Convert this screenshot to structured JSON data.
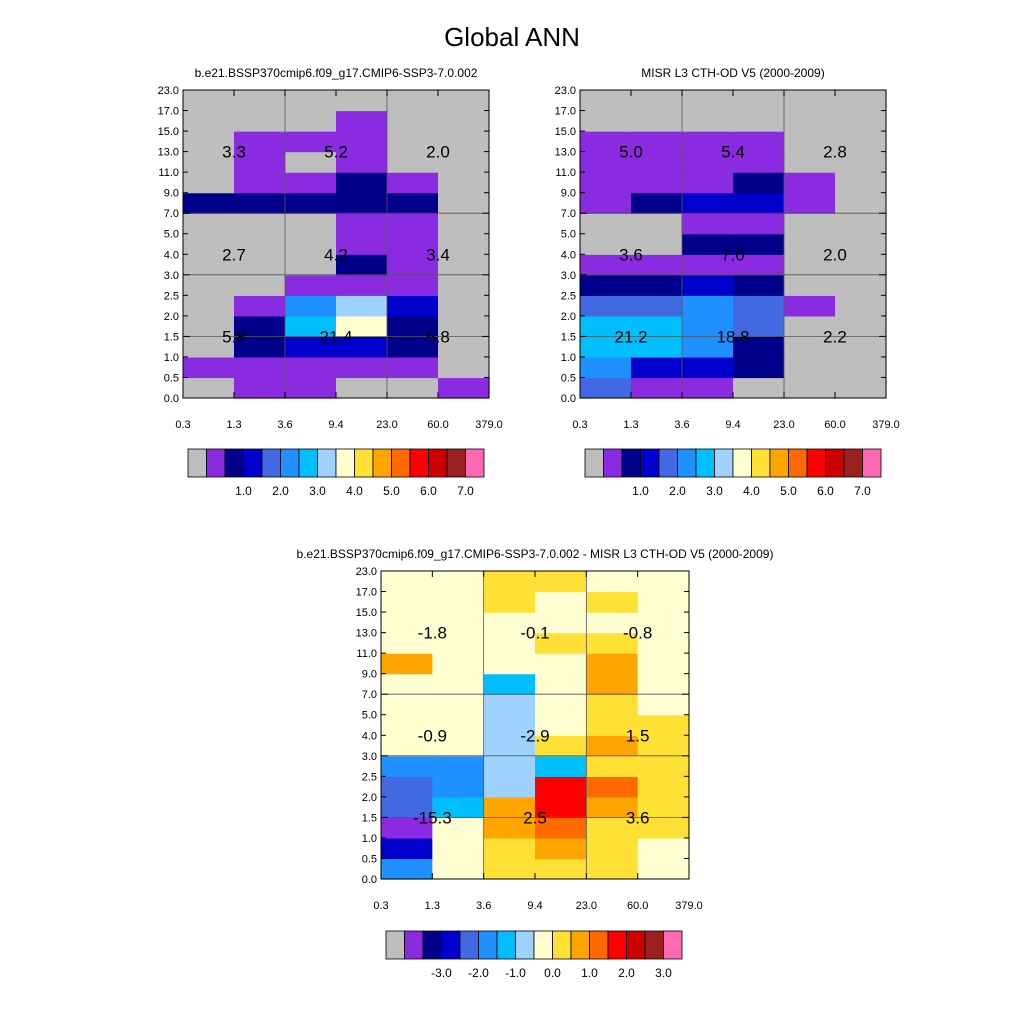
{
  "title": "Global ANN",
  "chart_data": [
    {
      "type": "heatmap",
      "title": "b.e21.BSSP370cmip6.f09_g17.CMIP6-SSP3-7.0.002",
      "x_ticks": [
        "0.3",
        "1.3",
        "3.6",
        "9.4",
        "23.0",
        "60.0",
        "379.0"
      ],
      "y_ticks": [
        "0.0",
        "0.5",
        "1.0",
        "1.5",
        "2.0",
        "2.5",
        "3.0",
        "4.0",
        "5.0",
        "7.0",
        "9.0",
        "11.0",
        "13.0",
        "15.0",
        "17.0",
        "23.0"
      ],
      "grid_lines": true,
      "colorbar_labels": [
        "1.0",
        "2.0",
        "3.0",
        "4.0",
        "5.0",
        "6.0",
        "7.0"
      ],
      "box_labels": [
        {
          "x": "1.3",
          "y": "13.0",
          "value": "3.3"
        },
        {
          "x": "9.4",
          "y": "13.0",
          "value": "5.2"
        },
        {
          "x": "60.0",
          "y": "13.0",
          "value": "2.0"
        },
        {
          "x": "1.3",
          "y": "4.0",
          "value": "2.7"
        },
        {
          "x": "9.4",
          "y": "4.0",
          "value": "4.2"
        },
        {
          "x": "60.0",
          "y": "4.0",
          "value": "3.4"
        },
        {
          "x": "1.3",
          "y": "1.5",
          "value": "5.8"
        },
        {
          "x": "9.4",
          "y": "1.5",
          "value": "21.4"
        },
        {
          "x": "60.0",
          "y": "1.5",
          "value": "5.8"
        }
      ],
      "cells": [
        [
          0,
          1,
          1,
          0,
          0,
          1
        ],
        [
          1,
          1,
          1,
          1,
          1,
          0
        ],
        [
          0,
          2,
          3,
          3,
          2,
          0
        ],
        [
          0,
          2,
          6,
          8,
          2,
          0
        ],
        [
          0,
          1,
          5,
          7,
          3,
          0
        ],
        [
          0,
          0,
          1,
          1,
          1,
          0
        ],
        [
          0,
          0,
          0,
          2,
          1,
          0
        ],
        [
          0,
          0,
          0,
          1,
          1,
          0
        ],
        [
          0,
          0,
          0,
          1,
          1,
          0
        ],
        [
          2,
          2,
          2,
          2,
          2,
          0
        ],
        [
          0,
          1,
          1,
          2,
          1,
          0
        ],
        [
          0,
          1,
          0,
          1,
          0,
          0
        ],
        [
          0,
          1,
          1,
          1,
          0,
          0
        ],
        [
          0,
          0,
          0,
          1,
          0,
          0
        ],
        [
          0,
          0,
          0,
          0,
          0,
          0
        ]
      ]
    },
    {
      "type": "heatmap",
      "title": "MISR L3 CTH-OD V5 (2000-2009)",
      "x_ticks": [
        "0.3",
        "1.3",
        "3.6",
        "9.4",
        "23.0",
        "60.0",
        "379.0"
      ],
      "y_ticks": [
        "0.0",
        "0.5",
        "1.0",
        "1.5",
        "2.0",
        "2.5",
        "3.0",
        "4.0",
        "5.0",
        "7.0",
        "9.0",
        "11.0",
        "13.0",
        "15.0",
        "17.0",
        "23.0"
      ],
      "grid_lines": true,
      "colorbar_labels": [
        "1.0",
        "2.0",
        "3.0",
        "4.0",
        "5.0",
        "6.0",
        "7.0"
      ],
      "box_labels": [
        {
          "x": "1.3",
          "y": "13.0",
          "value": "5.0"
        },
        {
          "x": "9.4",
          "y": "13.0",
          "value": "5.4"
        },
        {
          "x": "60.0",
          "y": "13.0",
          "value": "2.8"
        },
        {
          "x": "1.3",
          "y": "4.0",
          "value": "3.6"
        },
        {
          "x": "9.4",
          "y": "4.0",
          "value": "7.0"
        },
        {
          "x": "60.0",
          "y": "4.0",
          "value": "2.0"
        },
        {
          "x": "1.3",
          "y": "1.5",
          "value": "21.2"
        },
        {
          "x": "9.4",
          "y": "1.5",
          "value": "18.8"
        },
        {
          "x": "60.0",
          "y": "1.5",
          "value": "2.2"
        }
      ],
      "cells": [
        [
          4,
          1,
          1,
          0,
          0,
          0
        ],
        [
          5,
          3,
          3,
          2,
          0,
          0
        ],
        [
          6,
          6,
          5,
          2,
          0,
          0
        ],
        [
          6,
          6,
          5,
          4,
          0,
          0
        ],
        [
          4,
          4,
          5,
          4,
          1,
          0
        ],
        [
          2,
          2,
          3,
          2,
          0,
          0
        ],
        [
          1,
          1,
          1,
          1,
          0,
          0
        ],
        [
          0,
          0,
          2,
          2,
          0,
          0
        ],
        [
          0,
          0,
          1,
          1,
          0,
          0
        ],
        [
          1,
          2,
          3,
          3,
          1,
          0
        ],
        [
          1,
          1,
          1,
          2,
          1,
          0
        ],
        [
          1,
          1,
          1,
          1,
          0,
          0
        ],
        [
          1,
          1,
          1,
          1,
          0,
          0
        ],
        [
          0,
          0,
          0,
          0,
          0,
          0
        ],
        [
          0,
          0,
          0,
          0,
          0,
          0
        ]
      ]
    },
    {
      "type": "heatmap",
      "title": "b.e21.BSSP370cmip6.f09_g17.CMIP6-SSP3-7.0.002 - MISR L3 CTH-OD V5 (2000-2009)",
      "x_ticks": [
        "0.3",
        "1.3",
        "3.6",
        "9.4",
        "23.0",
        "60.0",
        "379.0"
      ],
      "y_ticks": [
        "0.0",
        "0.5",
        "1.0",
        "1.5",
        "2.0",
        "2.5",
        "3.0",
        "4.0",
        "5.0",
        "7.0",
        "9.0",
        "11.0",
        "13.0",
        "15.0",
        "17.0",
        "23.0"
      ],
      "grid_lines": true,
      "colorbar_labels": [
        "-3.0",
        "-2.0",
        "-1.0",
        "0.0",
        "1.0",
        "2.0",
        "3.0"
      ],
      "box_labels": [
        {
          "x": "1.3",
          "y": "13.0",
          "value": "-1.8"
        },
        {
          "x": "9.4",
          "y": "13.0",
          "value": "-0.1"
        },
        {
          "x": "60.0",
          "y": "13.0",
          "value": "-0.8"
        },
        {
          "x": "1.3",
          "y": "4.0",
          "value": "-0.9"
        },
        {
          "x": "9.4",
          "y": "4.0",
          "value": "-2.9"
        },
        {
          "x": "60.0",
          "y": "4.0",
          "value": "1.5"
        },
        {
          "x": "1.3",
          "y": "1.5",
          "value": "-15.3"
        },
        {
          "x": "9.4",
          "y": "1.5",
          "value": "2.5"
        },
        {
          "x": "60.0",
          "y": "1.5",
          "value": "3.6"
        }
      ],
      "cells": [
        [
          5,
          8,
          9,
          9,
          9,
          8
        ],
        [
          3,
          8,
          9,
          10,
          9,
          8
        ],
        [
          1,
          8,
          10,
          11,
          9,
          9
        ],
        [
          4,
          6,
          10,
          12,
          10,
          9
        ],
        [
          4,
          5,
          7,
          12,
          11,
          9
        ],
        [
          5,
          5,
          7,
          6,
          9,
          9
        ],
        [
          8,
          8,
          7,
          9,
          10,
          9
        ],
        [
          8,
          8,
          7,
          8,
          9,
          9
        ],
        [
          8,
          8,
          7,
          8,
          9,
          8
        ],
        [
          8,
          8,
          6,
          8,
          10,
          8
        ],
        [
          10,
          8,
          8,
          8,
          10,
          8
        ],
        [
          8,
          8,
          8,
          9,
          9,
          8
        ],
        [
          8,
          8,
          8,
          8,
          8,
          8
        ],
        [
          8,
          8,
          9,
          8,
          9,
          8
        ],
        [
          8,
          8,
          9,
          9,
          8,
          8
        ]
      ]
    }
  ],
  "colorbar_colors": [
    "#bebebe",
    "#8a2be2",
    "#00008b",
    "#0000cd",
    "#4169e1",
    "#1e90ff",
    "#00bfff",
    "#a0d2ff",
    "#ffffd1",
    "#ffe135",
    "#ffa500",
    "#ff6a00",
    "#ff0000",
    "#cd0000",
    "#9b2020",
    "#ff69b4"
  ]
}
